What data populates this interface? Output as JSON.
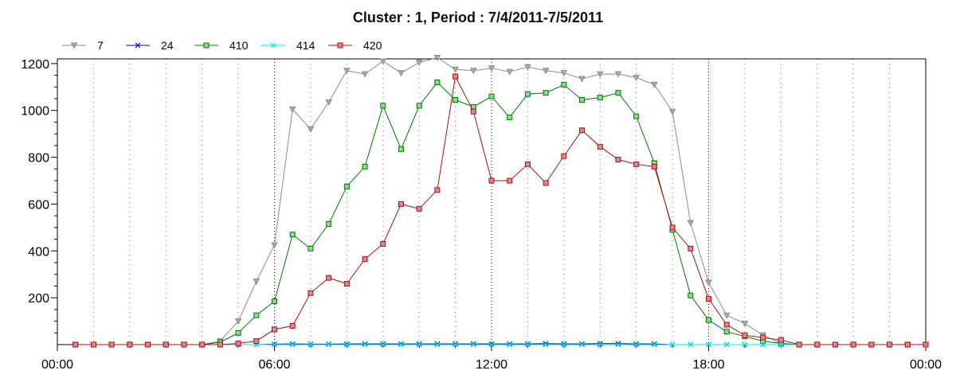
{
  "chart_data": {
    "type": "line",
    "title": "Cluster : 1, Period : 7/4/2011-7/5/2011",
    "xlabel": "",
    "ylabel": "",
    "x_ticks": [
      "00:00",
      "06:00",
      "12:00",
      "18:00",
      "00:00"
    ],
    "x_range_hours": [
      0,
      24
    ],
    "ylim": [
      0,
      1220
    ],
    "y_ticks": [
      200,
      400,
      600,
      800,
      1000,
      1200
    ],
    "grid": "vertical dotted",
    "legend_position": "top-left",
    "x_hours": [
      0.5,
      1.0,
      1.5,
      2.0,
      2.5,
      3.0,
      3.5,
      4.0,
      4.5,
      5.0,
      5.5,
      6.0,
      6.5,
      7.0,
      7.5,
      8.0,
      8.5,
      9.0,
      9.5,
      10.0,
      10.5,
      11.0,
      11.5,
      12.0,
      12.5,
      13.0,
      13.5,
      14.0,
      14.5,
      15.0,
      15.5,
      16.0,
      16.5,
      17.0,
      17.5,
      18.0,
      18.5,
      19.0,
      19.5,
      20.0,
      20.5,
      21.0,
      21.5,
      22.0,
      22.5,
      23.0,
      23.5,
      24.0
    ],
    "series": [
      {
        "name": "7",
        "color": "#8c8c8c",
        "marker": "triangle-down",
        "values": [
          0,
          0,
          0,
          0,
          0,
          0,
          0,
          0,
          15,
          100,
          270,
          425,
          1005,
          920,
          1035,
          1170,
          1155,
          1210,
          1160,
          1205,
          1225,
          1175,
          1170,
          1180,
          1165,
          1185,
          1170,
          1160,
          1135,
          1155,
          1155,
          1140,
          1110,
          995,
          520,
          265,
          125,
          90,
          40,
          5,
          0,
          0,
          0,
          0,
          0,
          0,
          0,
          0
        ]
      },
      {
        "name": "24",
        "color": "#0000cc",
        "marker": "x",
        "values": [
          0,
          0,
          0,
          0,
          0,
          0,
          0,
          0,
          0,
          0,
          0,
          2,
          3,
          2,
          2,
          3,
          3,
          3,
          3,
          3,
          3,
          3,
          3,
          3,
          3,
          3,
          4,
          3,
          3,
          4,
          4,
          3,
          3,
          0,
          0,
          0,
          0,
          0,
          0,
          0,
          0,
          0,
          0,
          0,
          0,
          0,
          0,
          0
        ]
      },
      {
        "name": "410",
        "color": "#007700",
        "marker": "square",
        "fill": "#88dd88",
        "values": [
          0,
          0,
          0,
          0,
          0,
          0,
          0,
          0,
          10,
          50,
          125,
          185,
          470,
          410,
          515,
          675,
          760,
          1020,
          835,
          1020,
          1120,
          1045,
          1015,
          1060,
          970,
          1070,
          1075,
          1110,
          1045,
          1055,
          1075,
          975,
          775,
          490,
          210,
          105,
          55,
          35,
          15,
          5,
          0,
          0,
          0,
          0,
          0,
          0,
          0,
          0
        ]
      },
      {
        "name": "414",
        "color": "#00e5e5",
        "marker": "x",
        "values": [
          0,
          0,
          0,
          0,
          0,
          0,
          0,
          0,
          0,
          0,
          0,
          0,
          0,
          0,
          0,
          0,
          0,
          0,
          0,
          0,
          0,
          0,
          0,
          0,
          0,
          0,
          0,
          0,
          0,
          0,
          0,
          0,
          0,
          0,
          0,
          0,
          0,
          0,
          0,
          0,
          0,
          0,
          0,
          0,
          0,
          0,
          0,
          0
        ]
      },
      {
        "name": "420",
        "color": "#aa1111",
        "marker": "square",
        "fill": "#dd8888",
        "values": [
          0,
          0,
          0,
          0,
          0,
          0,
          0,
          0,
          0,
          5,
          15,
          65,
          80,
          220,
          285,
          260,
          365,
          430,
          600,
          580,
          660,
          1145,
          995,
          700,
          700,
          770,
          690,
          805,
          915,
          845,
          790,
          770,
          760,
          500,
          410,
          195,
          85,
          40,
          30,
          20,
          0,
          0,
          0,
          0,
          0,
          0,
          0,
          0
        ]
      }
    ]
  }
}
